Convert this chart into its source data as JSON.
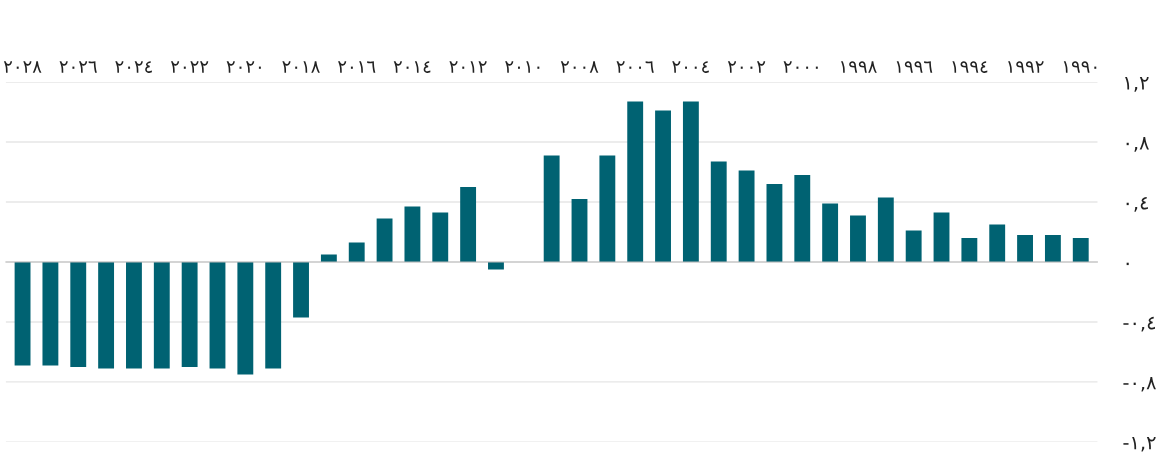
{
  "chart_data": {
    "type": "bar",
    "categories": [
      "٢٠٢٨",
      null,
      "٢٠٢٦",
      null,
      "٢٠٢٤",
      null,
      "٢٠٢٢",
      null,
      "٢٠٢٠",
      null,
      "٢٠١٨",
      null,
      "٢٠١٦",
      null,
      "٢٠١٤",
      null,
      "٢٠١٢",
      null,
      "٢٠١٠",
      null,
      "٢٠٠٨",
      null,
      "٢٠٠٦",
      null,
      "٢٠٠٤",
      null,
      "٢٠٠٢",
      null,
      "٢٠٠٠",
      null,
      "١٩٩٨",
      null,
      "١٩٩٦",
      null,
      "١٩٩٤",
      null,
      "١٩٩٢",
      null,
      "١٩٩٠"
    ],
    "values": [
      -0.69,
      -0.69,
      -0.7,
      -0.71,
      -0.71,
      -0.71,
      -0.7,
      -0.71,
      -0.75,
      -0.71,
      -0.37,
      0.05,
      0.13,
      0.29,
      0.37,
      0.33,
      0.5,
      -0.05,
      null,
      0.71,
      0.42,
      0.71,
      1.07,
      1.01,
      1.07,
      0.67,
      0.61,
      0.52,
      0.58,
      0.39,
      0.31,
      0.43,
      0.21,
      0.33,
      0.16,
      0.25,
      0.18,
      0.18,
      0.16
    ],
    "color": "#006272",
    "ylim": [
      -1.2,
      1.2
    ],
    "yticks": [
      {
        "value": -1.2,
        "label": "-١,٢"
      },
      {
        "value": -0.8,
        "label": "-٠,٨"
      },
      {
        "value": -0.4,
        "label": "-٠,٤"
      },
      {
        "value": 0,
        "label": "٠"
      },
      {
        "value": 0.4,
        "label": "٠,٤"
      },
      {
        "value": 0.8,
        "label": "٠,٨"
      },
      {
        "value": 1.2,
        "label": "١,٢"
      }
    ],
    "grid": "y"
  }
}
